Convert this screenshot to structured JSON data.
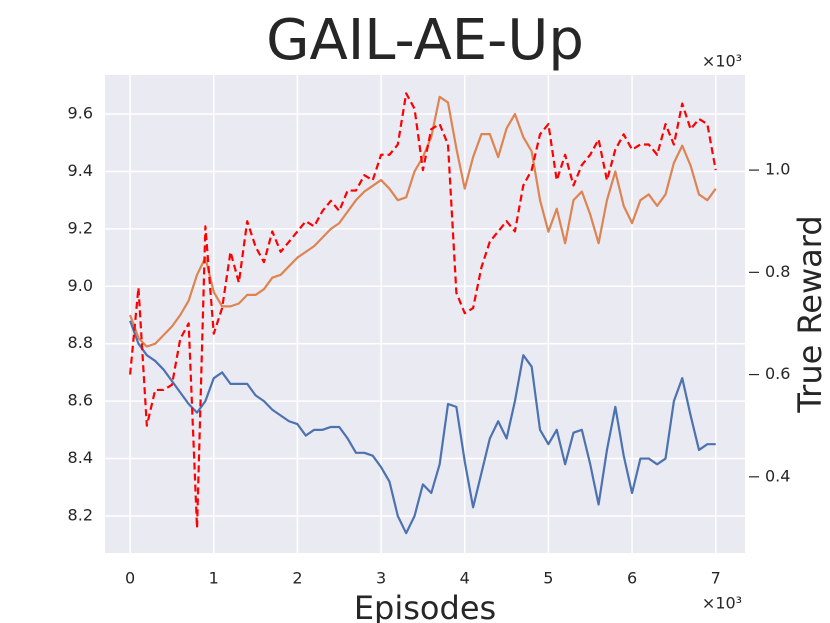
{
  "chart_data": {
    "type": "line",
    "title": "GAIL-AE-Up",
    "x_label": "Episodes",
    "y2_label": "True Reward",
    "x_offset": "×10³",
    "y2_offset": "×10³",
    "grid": true,
    "xlim": [
      -0.3,
      7.35
    ],
    "xticks": [
      0,
      1,
      2,
      3,
      4,
      5,
      6,
      7
    ],
    "ylim": [
      8.071,
      9.736
    ],
    "yticks": [
      8.2,
      8.4,
      8.6,
      8.8,
      {
        "value": 9.0,
        "label": "9.0"
      },
      9.2,
      9.4,
      9.6
    ],
    "y2lim": [
      0.251,
      1.186
    ],
    "y2ticks": [
      0.4,
      0.6,
      0.8,
      {
        "value": 1.0,
        "label": "1.0"
      }
    ],
    "x": [
      0,
      0.1,
      0.2,
      0.3,
      0.4,
      0.5,
      0.6,
      0.7,
      0.8,
      0.9,
      1.0,
      1.1,
      1.2,
      1.3,
      1.4,
      1.5,
      1.6,
      1.7,
      1.8,
      1.9,
      2.0,
      2.1,
      2.2,
      2.3,
      2.4,
      2.5,
      2.6,
      2.7,
      2.8,
      2.9,
      3.0,
      3.1,
      3.2,
      3.3,
      3.4,
      3.5,
      3.6,
      3.7,
      3.8,
      3.9,
      4.0,
      4.1,
      4.2,
      4.3,
      4.4,
      4.5,
      4.6,
      4.7,
      4.8,
      4.9,
      5.0,
      5.1,
      5.2,
      5.3,
      5.4,
      5.5,
      5.6,
      5.7,
      5.8,
      5.9,
      6.0,
      6.1,
      6.2,
      6.3,
      6.4,
      6.5,
      6.6,
      6.7,
      6.8,
      6.9,
      7.0
    ],
    "series": [
      {
        "color": "#4c72b0",
        "dash": "none",
        "axis": "y",
        "values": [
          8.88,
          8.8,
          8.76,
          8.74,
          8.71,
          8.67,
          8.63,
          8.59,
          8.56,
          8.6,
          8.68,
          8.7,
          8.66,
          8.66,
          8.66,
          8.62,
          8.6,
          8.57,
          8.55,
          8.53,
          8.52,
          8.48,
          8.5,
          8.5,
          8.51,
          8.51,
          8.47,
          8.42,
          8.42,
          8.41,
          8.37,
          8.32,
          8.2,
          8.14,
          8.2,
          8.31,
          8.28,
          8.38,
          8.59,
          8.58,
          8.39,
          8.23,
          8.35,
          8.47,
          8.53,
          8.47,
          8.6,
          8.76,
          8.72,
          8.5,
          8.45,
          8.5,
          8.38,
          8.49,
          8.5,
          8.38,
          8.24,
          8.43,
          8.58,
          8.41,
          8.28,
          8.4,
          8.4,
          8.38,
          8.4,
          8.6,
          8.68,
          8.55,
          8.43,
          8.45,
          8.45
        ]
      },
      {
        "color": "#dd8452",
        "dash": "none",
        "axis": "y",
        "values": [
          8.9,
          8.82,
          8.79,
          8.8,
          8.83,
          8.86,
          8.9,
          8.95,
          9.04,
          9.1,
          8.98,
          8.93,
          8.93,
          8.94,
          8.97,
          8.97,
          8.99,
          9.03,
          9.04,
          9.07,
          9.1,
          9.12,
          9.14,
          9.17,
          9.2,
          9.22,
          9.26,
          9.3,
          9.33,
          9.35,
          9.37,
          9.34,
          9.3,
          9.31,
          9.4,
          9.45,
          9.52,
          9.66,
          9.64,
          9.48,
          9.34,
          9.45,
          9.53,
          9.53,
          9.45,
          9.55,
          9.6,
          9.52,
          9.47,
          9.3,
          9.19,
          9.27,
          9.15,
          9.3,
          9.33,
          9.25,
          9.15,
          9.3,
          9.4,
          9.28,
          9.22,
          9.3,
          9.32,
          9.28,
          9.32,
          9.43,
          9.49,
          9.42,
          9.32,
          9.3,
          9.34
        ]
      },
      {
        "color": "#ff0000",
        "dash": "7,4",
        "axis": "y2",
        "values": [
          0.6,
          0.77,
          0.5,
          0.57,
          0.57,
          0.58,
          0.67,
          0.7,
          0.3,
          0.89,
          0.68,
          0.73,
          0.84,
          0.78,
          0.9,
          0.85,
          0.82,
          0.88,
          0.84,
          0.86,
          0.88,
          0.9,
          0.89,
          0.92,
          0.94,
          0.92,
          0.96,
          0.96,
          0.99,
          0.98,
          1.03,
          1.03,
          1.05,
          1.15,
          1.12,
          1.0,
          1.08,
          1.09,
          1.05,
          0.76,
          0.72,
          0.73,
          0.81,
          0.86,
          0.88,
          0.9,
          0.88,
          0.97,
          1.0,
          1.07,
          1.09,
          0.98,
          1.03,
          0.97,
          1.01,
          1.03,
          1.06,
          0.98,
          1.04,
          1.07,
          1.04,
          1.05,
          1.05,
          1.03,
          1.09,
          1.05,
          1.13,
          1.08,
          1.1,
          1.09,
          1.0
        ]
      }
    ]
  }
}
